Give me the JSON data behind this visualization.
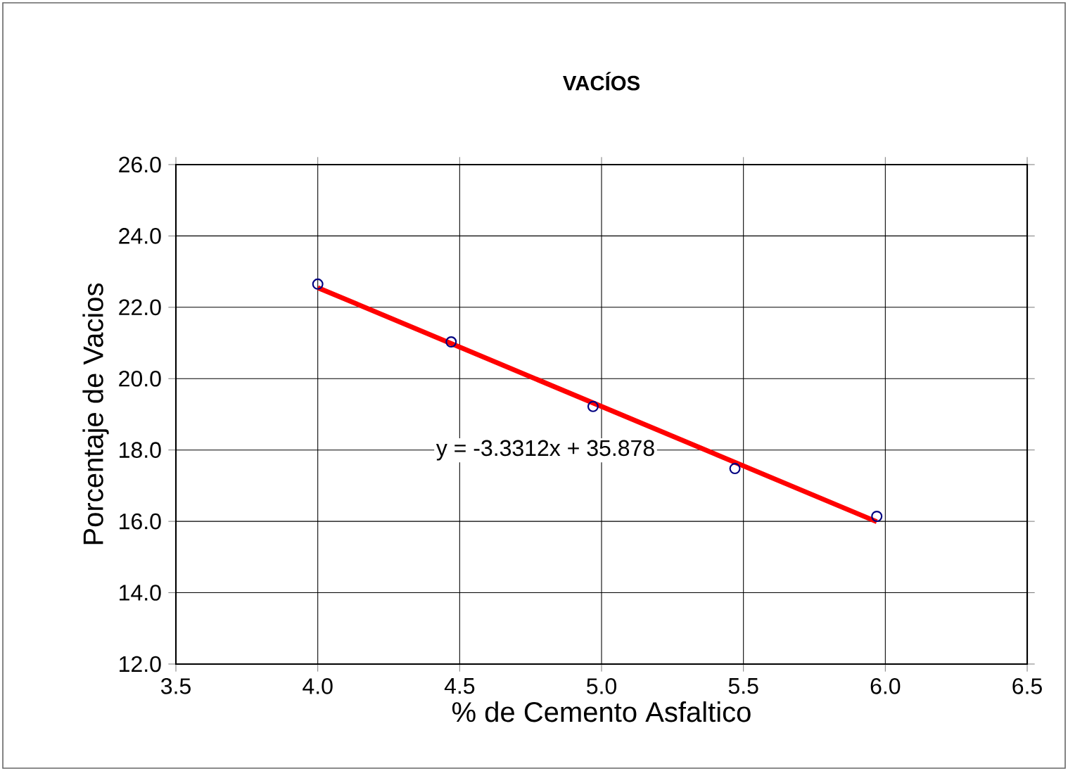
{
  "chart_data": {
    "type": "scatter",
    "title": "VACÍOS",
    "xlabel": "% de Cemento Asfaltico",
    "ylabel": "Porcentaje de Vacios",
    "xlim": [
      3.5,
      6.5
    ],
    "xticks": [
      {
        "value": 3.5,
        "label": "3.5"
      },
      {
        "value": 4.0,
        "label": "4.0"
      },
      {
        "value": 4.5,
        "label": "4.5"
      },
      {
        "value": 5.0,
        "label": "5.0"
      },
      {
        "value": 5.5,
        "label": "5.5"
      },
      {
        "value": 6.0,
        "label": "6.0"
      },
      {
        "value": 6.5,
        "label": "6.5"
      }
    ],
    "ylim": [
      12,
      26
    ],
    "yticks": [
      {
        "value": 12,
        "label": "12.0"
      },
      {
        "value": 14,
        "label": "14.0"
      },
      {
        "value": 16,
        "label": "16.0"
      },
      {
        "value": 18,
        "label": "18.0"
      },
      {
        "value": 20,
        "label": "20.0"
      },
      {
        "value": 22,
        "label": "22.0"
      },
      {
        "value": 24,
        "label": "24.0"
      },
      {
        "value": 26,
        "label": "26.0"
      }
    ],
    "grid": true,
    "series": [
      {
        "type": "line",
        "color": "#ff0000",
        "marker": "none",
        "line_style": "solid",
        "x": [
          4.0,
          5.97
        ],
        "values": [
          22.55,
          15.99
        ]
      },
      {
        "type": "scatter",
        "color": "#000080",
        "marker": "circle",
        "x": [
          4.0,
          4.47,
          4.97,
          5.47,
          5.97
        ],
        "values": [
          22.65,
          21.03,
          19.22,
          17.48,
          16.14
        ]
      }
    ],
    "annotations": [
      "y = -3.3312x + 35.878"
    ]
  }
}
